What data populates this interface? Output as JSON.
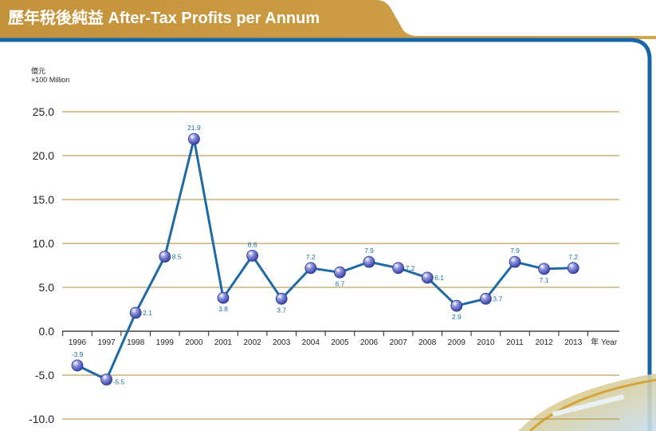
{
  "header": {
    "title": "歷年稅後純益 After-Tax Profits per Annum"
  },
  "colors": {
    "banner": "#c8983a",
    "frame": "#1565a8",
    "grid": "#b08a3a",
    "line": "#1e6aa6",
    "marker": "#3b46b0",
    "label": "#1b6fa8"
  },
  "chart_data": {
    "type": "line",
    "title": "歷年稅後純益 After-Tax Profits per Annum",
    "unit_line1": "億元",
    "unit_line2": "×100 Million",
    "xlabel": "年 Year",
    "ylabel": "",
    "ylim": [
      -10,
      25
    ],
    "yticks": [
      25,
      20,
      15,
      10,
      5,
      0,
      -5,
      -10
    ],
    "ytick_labels": [
      "25.0",
      "20.0",
      "15.0",
      "10.0",
      "5.0",
      "0.0",
      "-5.0",
      "-10.0"
    ],
    "grid": true,
    "categories": [
      "1996",
      "1997",
      "1998",
      "1999",
      "2000",
      "2001",
      "2002",
      "2003",
      "2004",
      "2005",
      "2006",
      "2007",
      "2008",
      "2009",
      "2010",
      "2011",
      "2012",
      "2013"
    ],
    "values": [
      -3.9,
      -5.5,
      2.1,
      8.5,
      21.9,
      3.8,
      8.6,
      3.7,
      7.2,
      6.7,
      7.9,
      7.2,
      6.1,
      2.9,
      3.7,
      7.9,
      7.1,
      7.2
    ],
    "value_labels": [
      "-3.9",
      "-5.5",
      "2.1",
      "8.5",
      "21.9",
      "3.8",
      "8.6",
      "3.7",
      "7.2",
      "6.7",
      "7.9",
      "7.2",
      "6.1",
      "2.9",
      "3.7",
      "7.9",
      "7.1",
      "7.2"
    ]
  }
}
